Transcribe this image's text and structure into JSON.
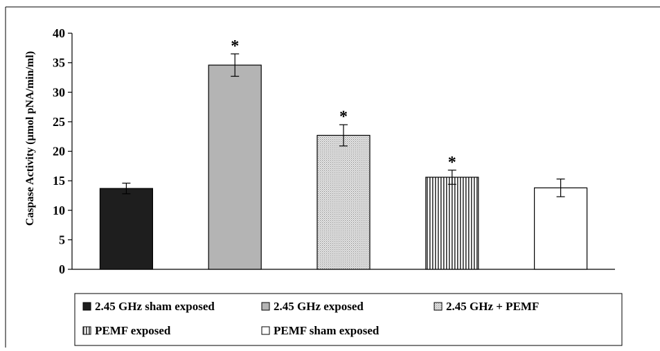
{
  "chart_data": {
    "type": "bar",
    "title": "",
    "xlabel": "",
    "ylabel": "Caspase Activity (µmol pNA/min/ml)",
    "ylim": [
      0,
      40
    ],
    "yticks": [
      0,
      5,
      10,
      15,
      20,
      25,
      30,
      35,
      40
    ],
    "grid": false,
    "legend_position": "bottom",
    "series": [
      {
        "name": "2.45 GHz sham exposed",
        "value": 13.7,
        "error": 0.9,
        "significant": false,
        "fill": "solid-dark",
        "color": "#1e1e1e"
      },
      {
        "name": "2.45 GHz exposed",
        "value": 34.6,
        "error": 1.9,
        "significant": true,
        "fill": "solid-gray",
        "color": "#b4b4b4"
      },
      {
        "name": "2.45 GHz + PEMF",
        "value": 22.7,
        "error": 1.8,
        "significant": true,
        "fill": "dotted",
        "color": "#d8d8d8"
      },
      {
        "name": "PEMF exposed",
        "value": 15.6,
        "error": 1.2,
        "significant": true,
        "fill": "vertical-stripes",
        "color": "#808080"
      },
      {
        "name": "PEMF sham exposed",
        "value": 13.8,
        "error": 1.5,
        "significant": false,
        "fill": "white",
        "color": "#ffffff"
      }
    ],
    "significance_marker": "*"
  }
}
